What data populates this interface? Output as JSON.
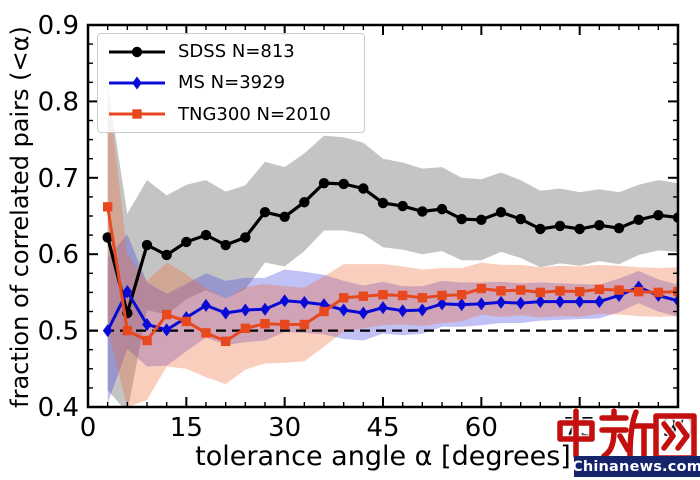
{
  "chart_data": {
    "type": "line",
    "title": "",
    "xlabel": "tolerance angle α [degrees]",
    "ylabel": "fraction of correlated pairs (<α)",
    "xlim": [
      0,
      90
    ],
    "ylim": [
      0.4,
      0.9
    ],
    "x_tick_labels": [
      "0",
      "15",
      "30",
      "45",
      "60",
      "75",
      "90"
    ],
    "x_minor_step": 3,
    "y_tick_labels": [
      "0.4",
      "0.5",
      "0.6",
      "0.7",
      "0.8",
      "0.9"
    ],
    "y_minor_step": 0.025,
    "grid": false,
    "legend_position": "upper-left",
    "reference_line_y": 0.5,
    "x": [
      3,
      6,
      9,
      12,
      15,
      18,
      21,
      24,
      27,
      30,
      33,
      36,
      39,
      42,
      45,
      48,
      51,
      54,
      57,
      60,
      63,
      66,
      69,
      72,
      75,
      78,
      81,
      84,
      87,
      90
    ],
    "series": [
      {
        "id": "sdss",
        "name": "SDSS N=813",
        "color": "#000000",
        "band_color": "#555555",
        "band_opacity": 0.35,
        "marker": "circle",
        "line_width": 3.2,
        "values": [
          0.622,
          0.523,
          0.612,
          0.599,
          0.616,
          0.625,
          0.612,
          0.622,
          0.655,
          0.649,
          0.668,
          0.693,
          0.692,
          0.686,
          0.667,
          0.663,
          0.656,
          0.659,
          0.646,
          0.645,
          0.655,
          0.646,
          0.633,
          0.637,
          0.633,
          0.638,
          0.634,
          0.645,
          0.651,
          0.648
        ],
        "err": [
          0.2,
          0.13,
          0.085,
          0.078,
          0.075,
          0.072,
          0.07,
          0.068,
          0.066,
          0.065,
          0.064,
          0.062,
          0.061,
          0.06,
          0.058,
          0.057,
          0.056,
          0.055,
          0.054,
          0.053,
          0.052,
          0.051,
          0.05,
          0.049,
          0.048,
          0.047,
          0.047,
          0.046,
          0.046,
          0.045
        ]
      },
      {
        "id": "ms",
        "name": "MS N=3929",
        "color": "#0a0ad6",
        "band_color": "#3333dd",
        "band_opacity": 0.3,
        "marker": "diamond",
        "line_width": 3.0,
        "values": [
          0.5,
          0.551,
          0.508,
          0.501,
          0.517,
          0.533,
          0.523,
          0.527,
          0.528,
          0.539,
          0.537,
          0.534,
          0.527,
          0.523,
          0.53,
          0.526,
          0.527,
          0.535,
          0.534,
          0.535,
          0.537,
          0.536,
          0.538,
          0.538,
          0.538,
          0.538,
          0.546,
          0.557,
          0.546,
          0.539
        ],
        "err": [
          0.095,
          0.075,
          0.055,
          0.047,
          0.044,
          0.042,
          0.042,
          0.042,
          0.041,
          0.041,
          0.04,
          0.039,
          0.038,
          0.036,
          0.034,
          0.032,
          0.031,
          0.03,
          0.029,
          0.028,
          0.027,
          0.026,
          0.025,
          0.024,
          0.023,
          0.022,
          0.022,
          0.021,
          0.021,
          0.021
        ]
      },
      {
        "id": "tng300",
        "name": "TNG300 N=2010",
        "color": "#e8481e",
        "band_color": "#ee6633",
        "band_opacity": 0.32,
        "marker": "square",
        "line_width": 3.0,
        "values": [
          0.662,
          0.5,
          0.487,
          0.521,
          0.512,
          0.497,
          0.486,
          0.503,
          0.509,
          0.508,
          0.508,
          0.525,
          0.543,
          0.545,
          0.547,
          0.546,
          0.543,
          0.546,
          0.547,
          0.555,
          0.552,
          0.553,
          0.55,
          0.552,
          0.551,
          0.554,
          0.553,
          0.551,
          0.55,
          0.551
        ],
        "err": [
          0.16,
          0.1,
          0.078,
          0.068,
          0.062,
          0.058,
          0.056,
          0.054,
          0.052,
          0.05,
          0.048,
          0.046,
          0.044,
          0.042,
          0.04,
          0.038,
          0.037,
          0.036,
          0.035,
          0.034,
          0.034,
          0.033,
          0.033,
          0.033,
          0.033,
          0.032,
          0.032,
          0.032,
          0.032,
          0.032
        ]
      }
    ]
  },
  "watermark": {
    "text_cn": "中新网",
    "text_en": "Chinanews.com",
    "red": "#c40f0f",
    "bar_bg": "#15246b"
  }
}
